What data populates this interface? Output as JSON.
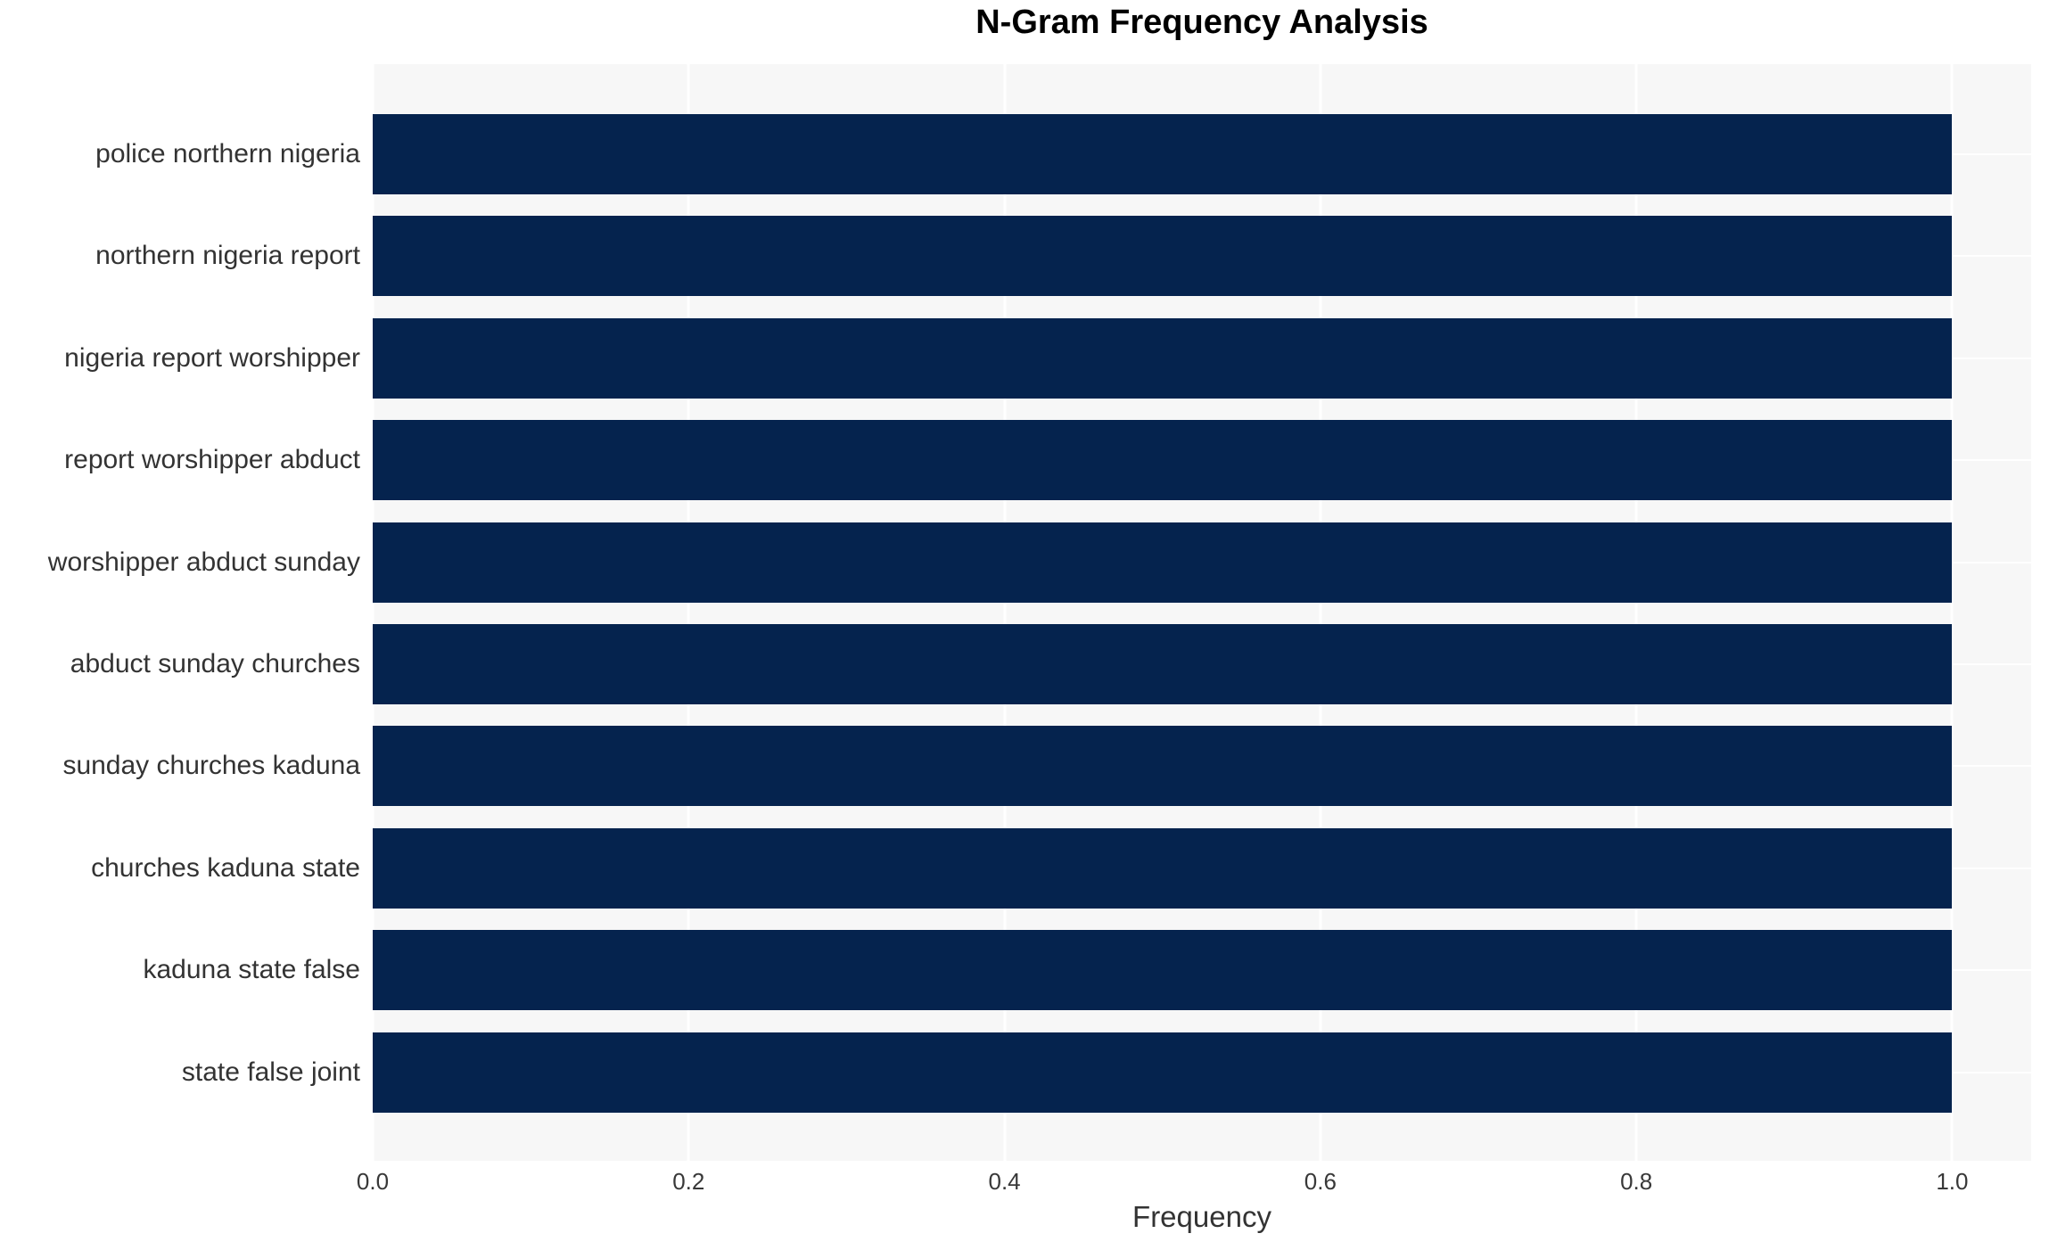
{
  "chart_data": {
    "type": "bar",
    "orientation": "horizontal",
    "title": "N-Gram Frequency Analysis",
    "xlabel": "Frequency",
    "ylabel": "",
    "categories": [
      "police northern nigeria",
      "northern nigeria report",
      "nigeria report worshipper",
      "report worshipper abduct",
      "worshipper abduct sunday",
      "abduct sunday churches",
      "sunday churches kaduna",
      "churches kaduna state",
      "kaduna state false",
      "state false joint"
    ],
    "values": [
      1.0,
      1.0,
      1.0,
      1.0,
      1.0,
      1.0,
      1.0,
      1.0,
      1.0,
      1.0
    ],
    "xticks": [
      "0.0",
      "0.2",
      "0.4",
      "0.6",
      "0.8",
      "1.0"
    ],
    "xtick_values": [
      0.0,
      0.2,
      0.4,
      0.6,
      0.8,
      1.0
    ],
    "xlim": [
      0,
      1.05
    ],
    "grid": true,
    "legend": "none",
    "colors": {
      "bar": "#05234e",
      "plot_background": "#f7f7f7",
      "gridline": "#ffffff",
      "tick_text": "#383838",
      "label_text": "#333333",
      "title_text": "#000000",
      "figure_background": "#ffffff"
    }
  }
}
